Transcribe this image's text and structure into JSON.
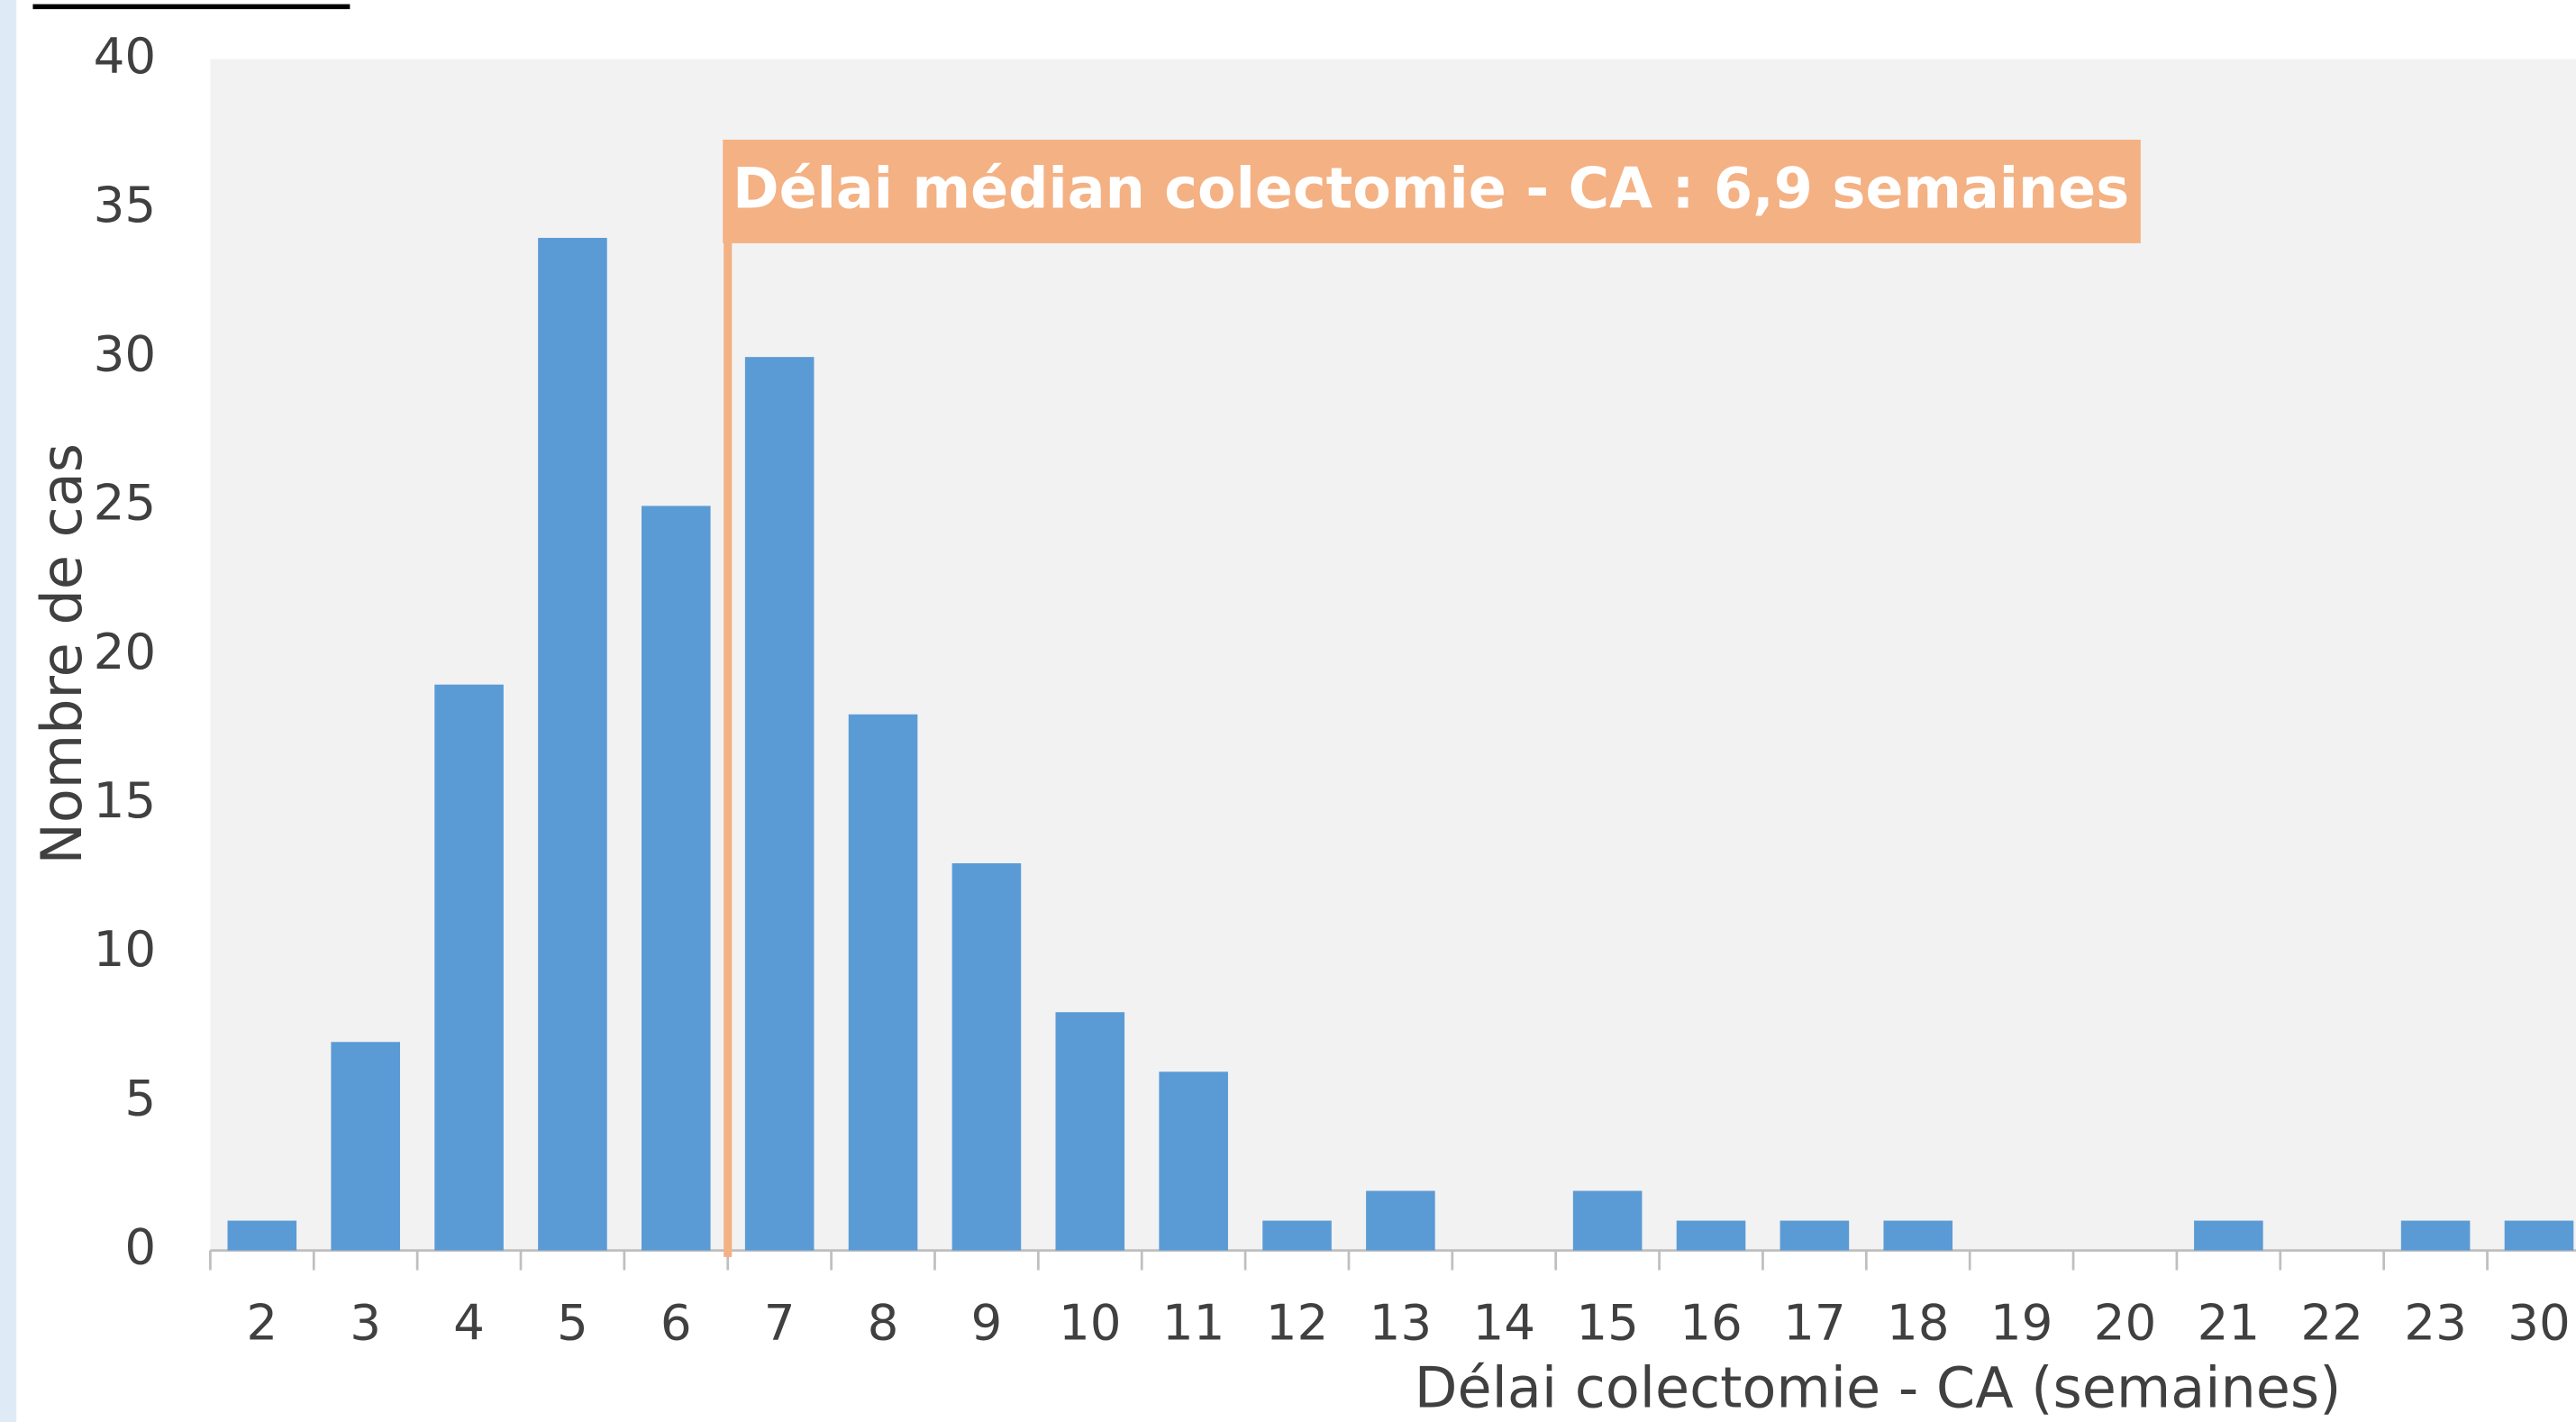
{
  "chart_data": {
    "type": "bar",
    "annotation": "Délai médian colectomie - CA : 6,9 semaines",
    "xlabel": "Délai colectomie - CA (semaines)",
    "ylabel": "Nombre de cas",
    "categories": [
      "2",
      "3",
      "4",
      "5",
      "6",
      "7",
      "8",
      "9",
      "10",
      "11",
      "12",
      "13",
      "14",
      "15",
      "16",
      "17",
      "18",
      "19",
      "20",
      "21",
      "22",
      "23",
      "30"
    ],
    "values": [
      1,
      7,
      19,
      34,
      25,
      30,
      18,
      13,
      8,
      6,
      1,
      2,
      0,
      2,
      1,
      1,
      1,
      0,
      0,
      1,
      0,
      1,
      1
    ],
    "color": "#5b9bd5",
    "ylim": [
      0,
      40
    ],
    "yticks": [
      0,
      5,
      10,
      15,
      20,
      25,
      30,
      35,
      40
    ],
    "grid": false
  }
}
